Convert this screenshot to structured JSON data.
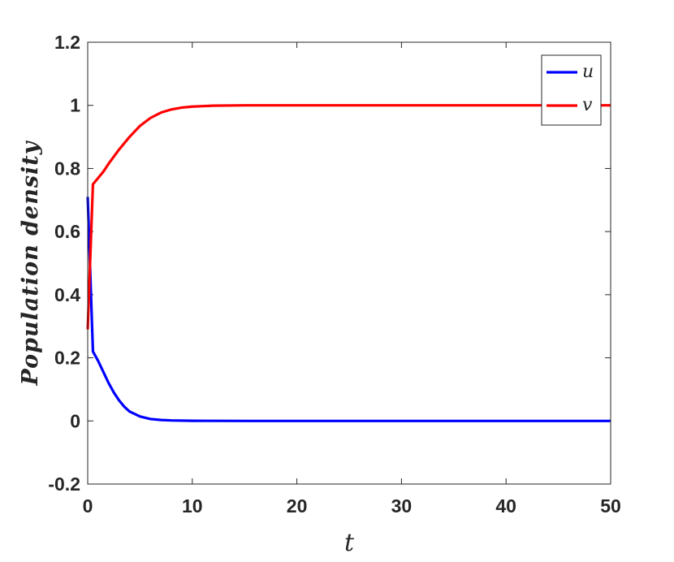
{
  "chart_data": {
    "type": "line",
    "xlabel": "t",
    "ylabel": "Population   density",
    "xlim": [
      0,
      50
    ],
    "ylim": [
      -0.2,
      1.2
    ],
    "xticks": [
      0,
      10,
      20,
      30,
      40,
      50
    ],
    "yticks": [
      -0.2,
      0,
      0.2,
      0.4,
      0.6,
      0.8,
      1,
      1.2
    ],
    "xtick_labels": [
      "0",
      "10",
      "20",
      "30",
      "40",
      "50"
    ],
    "ytick_labels": [
      "-0.2",
      "0",
      "0.2",
      "0.4",
      "0.6",
      "0.8",
      "1",
      "1.2"
    ],
    "grid": false,
    "legend_position": "top-right",
    "series": [
      {
        "name": "u",
        "color": "#0000ff",
        "x": [
          0,
          0.5,
          1,
          1.5,
          2,
          2.5,
          3,
          3.5,
          4,
          5,
          6,
          7,
          8,
          10,
          12,
          15,
          20,
          30,
          40,
          50
        ],
        "y": [
          0.71,
          0.22,
          0.19,
          0.155,
          0.12,
          0.09,
          0.065,
          0.045,
          0.03,
          0.014,
          0.006,
          0.003,
          0.0015,
          0.0005,
          0.0002,
          0,
          0,
          0,
          0,
          0
        ]
      },
      {
        "name": "v",
        "color": "#ff0000",
        "x": [
          0,
          0.5,
          1,
          1.5,
          2,
          3,
          4,
          5,
          6,
          7,
          8,
          9,
          10,
          12,
          15,
          20,
          30,
          40,
          50
        ],
        "y": [
          0.29,
          0.75,
          0.77,
          0.79,
          0.815,
          0.86,
          0.9,
          0.935,
          0.96,
          0.977,
          0.987,
          0.993,
          0.996,
          0.999,
          1,
          1,
          1,
          1,
          1
        ]
      }
    ]
  }
}
